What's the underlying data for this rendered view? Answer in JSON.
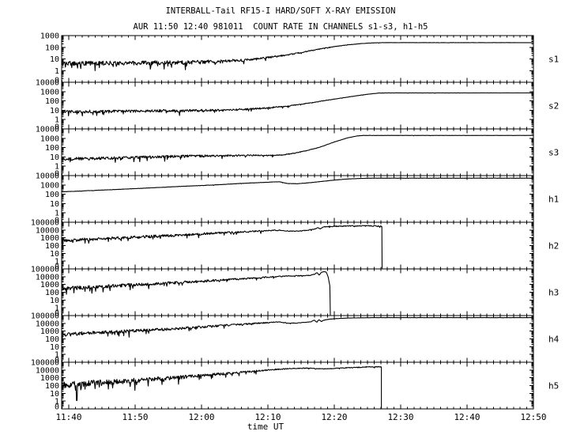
{
  "title": "INTERBALL-Tail RF15-I HARD/SOFT X-RAY EMISSION",
  "subtitle": "AUR 11:50 12:40 981011  COUNT RATE IN CHANNELS s1-s3, h1-h5",
  "colors": {
    "foreground": "#000000",
    "background": "#ffffff"
  },
  "chart_data": {
    "type": "line",
    "title": "INTERBALL-Tail RF15-I HARD/SOFT X-RAY EMISSION",
    "subtitle": "AUR 11:50 12:40 981011  COUNT RATE IN CHANNELS s1-s3, h1-h5",
    "xlabel": "time UT",
    "grid": false,
    "legend": "none",
    "x_axis": {
      "tick_labels": [
        "11:40",
        "11:50",
        "12:00",
        "12:10",
        "12:20",
        "12:30",
        "12:40",
        "12:50"
      ],
      "tick_minutes": [
        40,
        50,
        60,
        70,
        80,
        90,
        100,
        110
      ],
      "minor_step_minutes": 1,
      "start_minute": 38.93,
      "end_minute": 110.0
    },
    "y_axis_note": "logarithmic count rate; decade labels per panel, 0 marks panel floor",
    "panels": [
      {
        "label": "s1",
        "top_exponent": 3,
        "y_tick_labels": [
          "1000",
          "100",
          "10",
          "1",
          "0"
        ],
        "series_points": [
          [
            38.9,
            4
          ],
          [
            50,
            4.5
          ],
          [
            58,
            5
          ],
          [
            63,
            6
          ],
          [
            67,
            8
          ],
          [
            70,
            13
          ],
          [
            73,
            22
          ],
          [
            76,
            45
          ],
          [
            79,
            95
          ],
          [
            82,
            160
          ],
          [
            84.5,
            215
          ],
          [
            86.5,
            245
          ],
          [
            87.2,
            250
          ],
          [
            110,
            250
          ]
        ],
        "noise_profile": [
          [
            38.9,
            0.16
          ],
          [
            60,
            0.14
          ],
          [
            68,
            0.08
          ],
          [
            74,
            0.04
          ],
          [
            80,
            0.015
          ],
          [
            86,
            0.008
          ],
          [
            110,
            0.004
          ]
        ],
        "spikes": []
      },
      {
        "label": "s2",
        "top_exponent": 4,
        "y_tick_labels": [
          "10000",
          "1000",
          "100",
          "10",
          "1",
          "0"
        ],
        "series_points": [
          [
            38.9,
            7
          ],
          [
            50,
            8
          ],
          [
            58,
            9
          ],
          [
            63,
            10
          ],
          [
            67,
            13
          ],
          [
            70,
            18
          ],
          [
            73,
            28
          ],
          [
            76,
            55
          ],
          [
            79,
            120
          ],
          [
            81,
            200
          ],
          [
            83,
            330
          ],
          [
            85,
            520
          ],
          [
            86.8,
            700
          ],
          [
            87.5,
            720
          ],
          [
            110,
            720
          ]
        ],
        "noise_profile": [
          [
            38.9,
            0.13
          ],
          [
            60,
            0.11
          ],
          [
            68,
            0.07
          ],
          [
            74,
            0.035
          ],
          [
            80,
            0.012
          ],
          [
            110,
            0.004
          ]
        ],
        "spikes": []
      },
      {
        "label": "s3",
        "top_exponent": 4,
        "y_tick_labels": [
          "10000",
          "1000",
          "100",
          "10",
          "1",
          "0"
        ],
        "series_points": [
          [
            38.9,
            6
          ],
          [
            45,
            7
          ],
          [
            50,
            9
          ],
          [
            55,
            11
          ],
          [
            58,
            12
          ],
          [
            62,
            13
          ],
          [
            65,
            14
          ],
          [
            68,
            15
          ],
          [
            70,
            14
          ],
          [
            72,
            16
          ],
          [
            74,
            25
          ],
          [
            76,
            50
          ],
          [
            78,
            120
          ],
          [
            80,
            400
          ],
          [
            82,
            1100
          ],
          [
            83.5,
            1800
          ],
          [
            84.5,
            2000
          ],
          [
            110,
            2000
          ]
        ],
        "noise_profile": [
          [
            38.9,
            0.13
          ],
          [
            60,
            0.11
          ],
          [
            68,
            0.06
          ],
          [
            74,
            0.03
          ],
          [
            80,
            0.01
          ],
          [
            110,
            0.004
          ]
        ],
        "spikes": []
      },
      {
        "label": "h1",
        "top_exponent": 4,
        "y_tick_labels": [
          "10000",
          "1000",
          "100",
          "10",
          "1",
          "0"
        ],
        "series_points": [
          [
            38.9,
            180
          ],
          [
            44,
            260
          ],
          [
            50,
            400
          ],
          [
            56,
            650
          ],
          [
            62,
            1000
          ],
          [
            66,
            1450
          ],
          [
            69,
            1800
          ],
          [
            71,
            2100
          ],
          [
            71.8,
            2150
          ],
          [
            73,
            1400
          ],
          [
            74.5,
            1350
          ],
          [
            76,
            1650
          ],
          [
            78,
            2300
          ],
          [
            80,
            3300
          ],
          [
            82,
            4300
          ],
          [
            84,
            5000
          ],
          [
            85.5,
            5300
          ],
          [
            110,
            5300
          ]
        ],
        "noise_profile": [
          [
            38.9,
            0.012
          ],
          [
            110,
            0.008
          ]
        ],
        "spikes": []
      },
      {
        "label": "h2",
        "top_exponent": 5,
        "y_tick_labels": [
          "100000",
          "10000",
          "1000",
          "100",
          "10",
          "1",
          "0"
        ],
        "series_points": [
          [
            38.9,
            450
          ],
          [
            44,
            700
          ],
          [
            50,
            1200
          ],
          [
            56,
            2100
          ],
          [
            62,
            3800
          ],
          [
            66,
            5600
          ],
          [
            69,
            7500
          ],
          [
            71,
            9000
          ],
          [
            71.8,
            9300
          ],
          [
            73,
            7200
          ],
          [
            74.5,
            7200
          ],
          [
            76,
            9500
          ],
          [
            77,
            13000
          ],
          [
            77.5,
            20000
          ],
          [
            77.9,
            14000
          ],
          [
            78.3,
            24000
          ],
          [
            79,
            28000
          ],
          [
            80.5,
            31000
          ],
          [
            82,
            33000
          ],
          [
            84,
            34000
          ],
          [
            85.5,
            33500
          ],
          [
            86.8,
            32000
          ],
          [
            87.2,
            30000
          ],
          [
            87.2,
            0
          ]
        ],
        "noise_profile": [
          [
            38.9,
            0.18
          ],
          [
            55,
            0.14
          ],
          [
            65,
            0.1
          ],
          [
            72,
            0.05
          ],
          [
            76,
            0.04
          ],
          [
            78,
            0.03
          ],
          [
            80,
            0.05
          ],
          [
            85,
            0.06
          ],
          [
            87.2,
            0.06
          ]
        ],
        "spikes": []
      },
      {
        "label": "h3",
        "top_exponent": 5,
        "y_tick_labels": [
          "100000",
          "10000",
          "1000",
          "100",
          "10",
          "1",
          "0"
        ],
        "series_points": [
          [
            38.9,
            300
          ],
          [
            44,
            500
          ],
          [
            50,
            900
          ],
          [
            56,
            1700
          ],
          [
            60,
            2600
          ],
          [
            64,
            4200
          ],
          [
            67,
            6000
          ],
          [
            69,
            7800
          ],
          [
            71,
            10000
          ],
          [
            73,
            12000
          ],
          [
            75,
            13500
          ],
          [
            76.3,
            14500
          ],
          [
            77,
            20000
          ],
          [
            77.4,
            34000
          ],
          [
            77.7,
            16000
          ],
          [
            78.1,
            38000
          ],
          [
            78.5,
            45000
          ],
          [
            78.8,
            38000
          ],
          [
            79.1,
            8000
          ],
          [
            79.4,
            300
          ],
          [
            79.55,
            0
          ]
        ],
        "noise_profile": [
          [
            38.9,
            0.2
          ],
          [
            55,
            0.15
          ],
          [
            65,
            0.1
          ],
          [
            72,
            0.05
          ],
          [
            76,
            0.03
          ],
          [
            79.55,
            0.02
          ]
        ],
        "spikes": []
      },
      {
        "label": "h4",
        "top_exponent": 5,
        "y_tick_labels": [
          "100000",
          "10000",
          "1000",
          "100",
          "10",
          "1",
          "0"
        ],
        "series_points": [
          [
            38.9,
            380
          ],
          [
            44,
            600
          ],
          [
            50,
            1100
          ],
          [
            56,
            2100
          ],
          [
            60,
            3400
          ],
          [
            64,
            5800
          ],
          [
            67,
            8500
          ],
          [
            69,
            11000
          ],
          [
            71,
            14000
          ],
          [
            71.8,
            15000
          ],
          [
            73,
            10500
          ],
          [
            74.3,
            11000
          ],
          [
            75.5,
            13000
          ],
          [
            76.5,
            16000
          ],
          [
            77,
            26000
          ],
          [
            77.35,
            14000
          ],
          [
            77.7,
            30000
          ],
          [
            78.05,
            17000
          ],
          [
            78.4,
            26000
          ],
          [
            79,
            32000
          ],
          [
            80,
            40000
          ],
          [
            82,
            48000
          ],
          [
            84,
            52000
          ],
          [
            86,
            54000
          ],
          [
            110,
            54000
          ]
        ],
        "noise_profile": [
          [
            38.9,
            0.2
          ],
          [
            55,
            0.15
          ],
          [
            65,
            0.09
          ],
          [
            72,
            0.04
          ],
          [
            76,
            0.02
          ],
          [
            80,
            0.01
          ],
          [
            110,
            0.006
          ]
        ],
        "spikes": []
      },
      {
        "label": "h5",
        "top_exponent": 5,
        "y_tick_labels": [
          "100000",
          "10000",
          "1000",
          "100",
          "10",
          "1",
          "0"
        ],
        "series_points": [
          [
            38.9,
            120
          ],
          [
            44,
            220
          ],
          [
            50,
            450
          ],
          [
            56,
            1000
          ],
          [
            60,
            1900
          ],
          [
            64,
            3600
          ],
          [
            67,
            6000
          ],
          [
            69,
            8500
          ],
          [
            71,
            11500
          ],
          [
            72.5,
            14000
          ],
          [
            74,
            16000
          ],
          [
            75.5,
            17500
          ],
          [
            76.5,
            17000
          ],
          [
            77.5,
            14500
          ],
          [
            78.5,
            14000
          ],
          [
            79.5,
            15000
          ],
          [
            81,
            18000
          ],
          [
            83,
            21000
          ],
          [
            85,
            24000
          ],
          [
            86.5,
            26000
          ],
          [
            87.1,
            25000
          ],
          [
            87.15,
            0
          ]
        ],
        "noise_profile": [
          [
            38.9,
            0.35
          ],
          [
            50,
            0.25
          ],
          [
            58,
            0.18
          ],
          [
            65,
            0.12
          ],
          [
            70,
            0.07
          ],
          [
            74,
            0.04
          ],
          [
            80,
            0.03
          ],
          [
            86,
            0.05
          ],
          [
            87.15,
            0.05
          ]
        ],
        "spikes": [
          41.2
        ]
      }
    ]
  }
}
